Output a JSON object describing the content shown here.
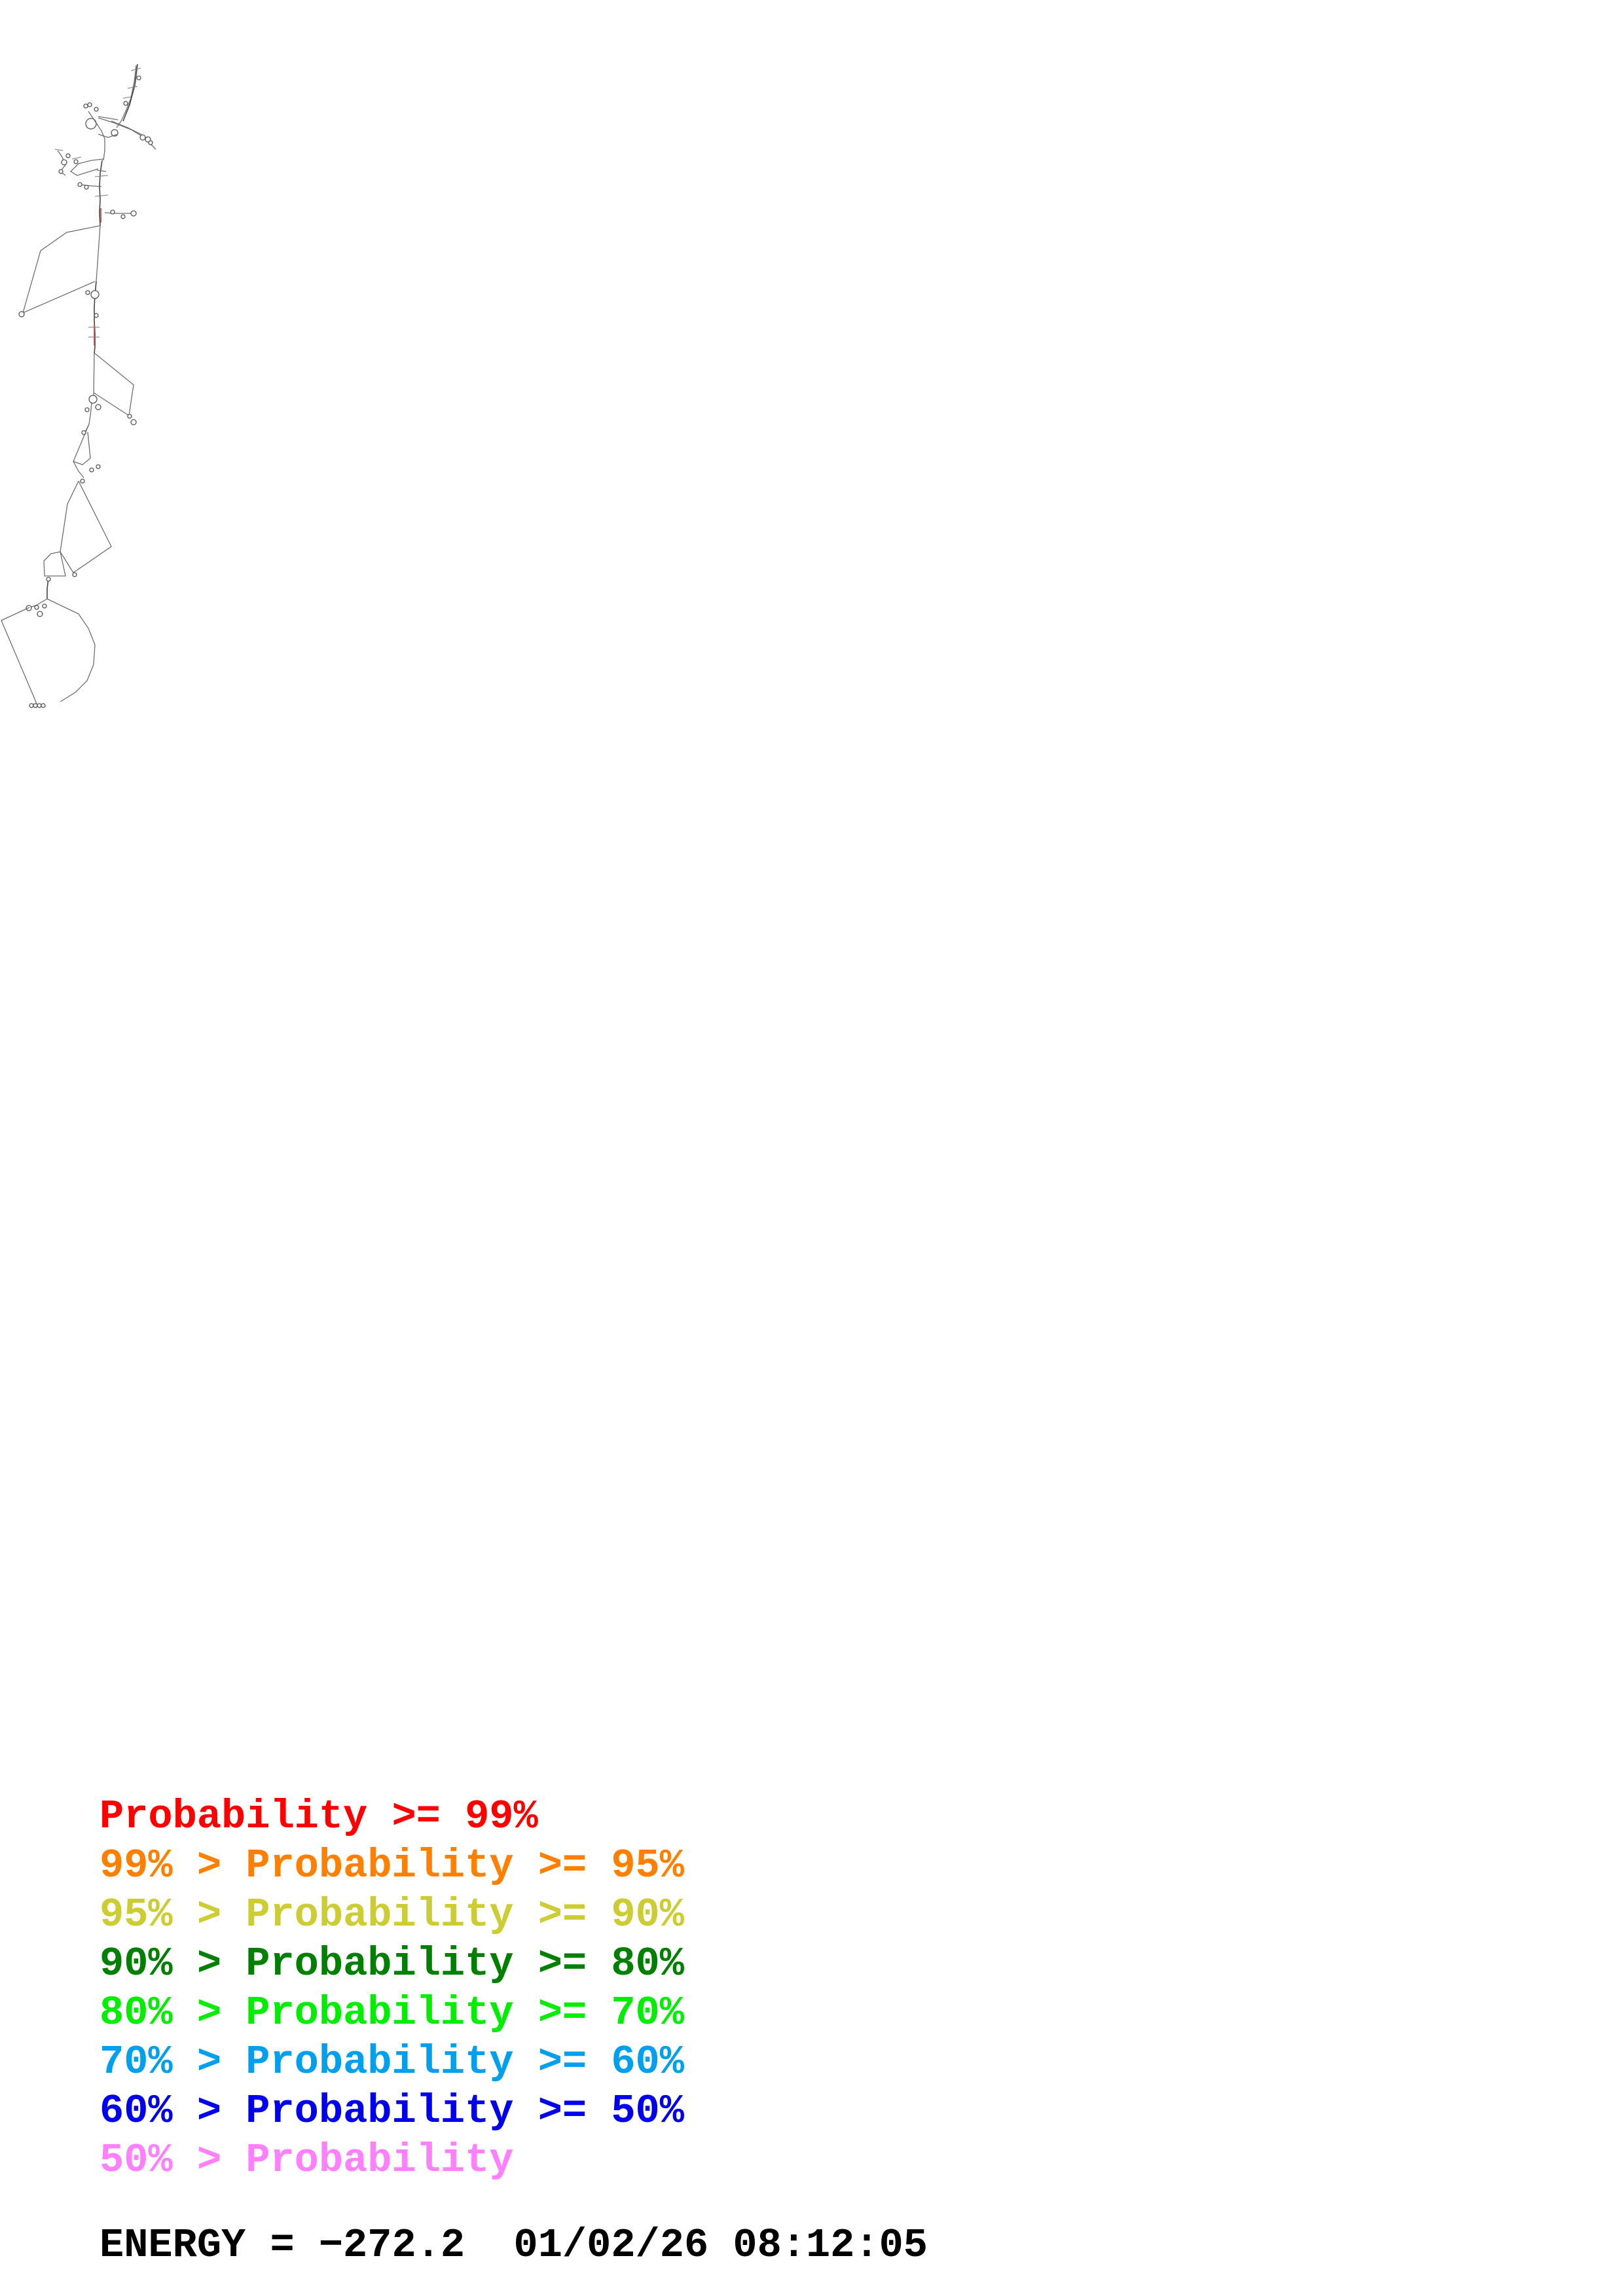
{
  "legend": {
    "rows": [
      {
        "prefix": "",
        "label": "Probability >= 99%",
        "color": "#ff0000"
      },
      {
        "prefix": "99% > ",
        "label": "Probability >= 95%",
        "color": "#ff8000"
      },
      {
        "prefix": "95% > ",
        "label": "Probability >= 90%",
        "color": "#cccc33"
      },
      {
        "prefix": "90% > ",
        "label": "Probability >= 80%",
        "color": "#008000"
      },
      {
        "prefix": "80% > ",
        "label": "Probability >= 70%",
        "color": "#00ee00"
      },
      {
        "prefix": "70% > ",
        "label": "Probability >= 60%",
        "color": "#00a0ee"
      },
      {
        "prefix": "60% > ",
        "label": "Probability >= 50%",
        "color": "#0000ee"
      },
      {
        "prefix": "50% > ",
        "label": "Probability",
        "color": "#ff80ff"
      }
    ]
  },
  "energy": {
    "text": "ENERGY = −272.2  01/02/26 08:12:05"
  }
}
